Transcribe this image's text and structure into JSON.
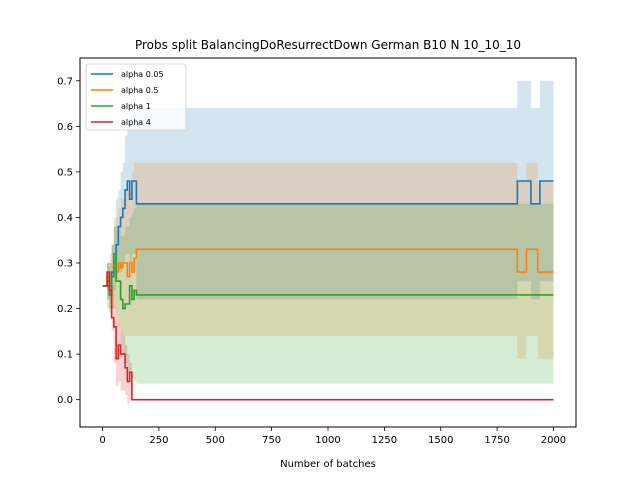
{
  "chart_data": {
    "type": "line",
    "title": "Probs split BalancingDoResurrectDown German B10 N 10_10_10",
    "xlabel": "Number of batches",
    "ylabel": "",
    "xlim": [
      -100,
      2100
    ],
    "ylim": [
      -0.06,
      0.75
    ],
    "xticks": [
      0,
      250,
      500,
      750,
      1000,
      1250,
      1500,
      1750,
      2000
    ],
    "yticks": [
      0.0,
      0.1,
      0.2,
      0.3,
      0.4,
      0.5,
      0.6,
      0.7
    ],
    "ytick_labels": [
      "0.0",
      "0.1",
      "0.2",
      "0.3",
      "0.4",
      "0.5",
      "0.6",
      "0.7"
    ],
    "legend_position": "top-left",
    "grid": false,
    "series": [
      {
        "name": "alpha 0.05",
        "color": "#1f77b4",
        "band_opacity": 0.2,
        "x": [
          0,
          10,
          20,
          30,
          40,
          50,
          60,
          70,
          80,
          90,
          100,
          110,
          120,
          130,
          140,
          150,
          160,
          500,
          1000,
          1500,
          1830,
          1840,
          1870,
          1890,
          1900,
          1930,
          1940,
          2000
        ],
        "y": [
          0.25,
          0.25,
          0.25,
          0.25,
          0.28,
          0.3,
          0.34,
          0.38,
          0.4,
          0.42,
          0.46,
          0.48,
          0.44,
          0.48,
          0.48,
          0.43,
          0.43,
          0.43,
          0.43,
          0.43,
          0.43,
          0.48,
          0.48,
          0.48,
          0.43,
          0.43,
          0.48,
          0.48
        ],
        "lower": [
          0.25,
          0.25,
          0.22,
          0.22,
          0.24,
          0.24,
          0.26,
          0.28,
          0.28,
          0.3,
          0.32,
          0.32,
          0.3,
          0.32,
          0.32,
          0.22,
          0.22,
          0.22,
          0.22,
          0.22,
          0.22,
          0.26,
          0.26,
          0.26,
          0.22,
          0.22,
          0.26,
          0.26
        ],
        "upper": [
          0.25,
          0.25,
          0.28,
          0.3,
          0.34,
          0.38,
          0.44,
          0.46,
          0.5,
          0.52,
          0.58,
          0.6,
          0.62,
          0.64,
          0.64,
          0.64,
          0.64,
          0.64,
          0.64,
          0.64,
          0.64,
          0.7,
          0.7,
          0.7,
          0.64,
          0.64,
          0.7,
          0.7
        ]
      },
      {
        "name": "alpha 0.5",
        "color": "#ff7f0e",
        "band_opacity": 0.2,
        "x": [
          0,
          10,
          20,
          30,
          40,
          50,
          60,
          70,
          80,
          90,
          100,
          110,
          120,
          130,
          140,
          150,
          160,
          500,
          1000,
          1500,
          1830,
          1840,
          1870,
          1880,
          1920,
          1930,
          2000
        ],
        "y": [
          0.25,
          0.25,
          0.27,
          0.24,
          0.27,
          0.3,
          0.28,
          0.3,
          0.29,
          0.3,
          0.3,
          0.27,
          0.3,
          0.28,
          0.31,
          0.33,
          0.33,
          0.33,
          0.33,
          0.33,
          0.33,
          0.28,
          0.28,
          0.33,
          0.33,
          0.28,
          0.28
        ],
        "lower": [
          0.25,
          0.25,
          0.22,
          0.2,
          0.2,
          0.2,
          0.18,
          0.16,
          0.15,
          0.14,
          0.14,
          0.14,
          0.14,
          0.14,
          0.14,
          0.14,
          0.14,
          0.14,
          0.14,
          0.14,
          0.14,
          0.09,
          0.09,
          0.14,
          0.14,
          0.09,
          0.09
        ],
        "upper": [
          0.25,
          0.25,
          0.3,
          0.32,
          0.34,
          0.38,
          0.4,
          0.42,
          0.44,
          0.44,
          0.46,
          0.46,
          0.48,
          0.5,
          0.52,
          0.52,
          0.52,
          0.52,
          0.52,
          0.52,
          0.52,
          0.48,
          0.48,
          0.52,
          0.52,
          0.48,
          0.48
        ]
      },
      {
        "name": "alpha 1",
        "color": "#2ca02c",
        "band_opacity": 0.2,
        "x": [
          0,
          10,
          20,
          30,
          40,
          50,
          60,
          70,
          80,
          90,
          100,
          110,
          120,
          130,
          140,
          150,
          160,
          500,
          1000,
          1500,
          2000
        ],
        "y": [
          0.25,
          0.25,
          0.26,
          0.23,
          0.27,
          0.32,
          0.26,
          0.26,
          0.22,
          0.2,
          0.21,
          0.21,
          0.25,
          0.22,
          0.24,
          0.23,
          0.23,
          0.23,
          0.23,
          0.23,
          0.23
        ],
        "lower": [
          0.25,
          0.25,
          0.2,
          0.19,
          0.2,
          0.22,
          0.18,
          0.17,
          0.12,
          0.1,
          0.08,
          0.06,
          0.06,
          0.05,
          0.04,
          0.035,
          0.035,
          0.035,
          0.035,
          0.035,
          0.035
        ],
        "upper": [
          0.25,
          0.25,
          0.3,
          0.3,
          0.34,
          0.4,
          0.38,
          0.38,
          0.36,
          0.36,
          0.38,
          0.38,
          0.4,
          0.41,
          0.42,
          0.43,
          0.43,
          0.43,
          0.43,
          0.43,
          0.43
        ]
      },
      {
        "name": "alpha 4",
        "color": "#d62728",
        "band_opacity": 0.2,
        "x": [
          0,
          10,
          20,
          30,
          40,
          50,
          60,
          70,
          80,
          90,
          100,
          110,
          120,
          130,
          140,
          500,
          1000,
          1500,
          2000
        ],
        "y": [
          0.25,
          0.25,
          0.28,
          0.24,
          0.18,
          0.16,
          0.09,
          0.12,
          0.1,
          0.1,
          0.07,
          0.04,
          0.06,
          0.0,
          0.0,
          0.0,
          0.0,
          0.0,
          0.0
        ],
        "lower": [
          0.25,
          0.25,
          0.24,
          0.2,
          0.15,
          0.08,
          0.03,
          0.04,
          0.02,
          0.02,
          0.01,
          -0.01,
          0.0,
          0.0,
          0.0,
          0.0,
          0.0,
          0.0,
          0.0
        ],
        "upper": [
          0.25,
          0.25,
          0.3,
          0.28,
          0.25,
          0.22,
          0.18,
          0.17,
          0.15,
          0.14,
          0.12,
          0.1,
          0.08,
          0.0,
          0.0,
          0.0,
          0.0,
          0.0,
          0.0
        ]
      }
    ]
  }
}
